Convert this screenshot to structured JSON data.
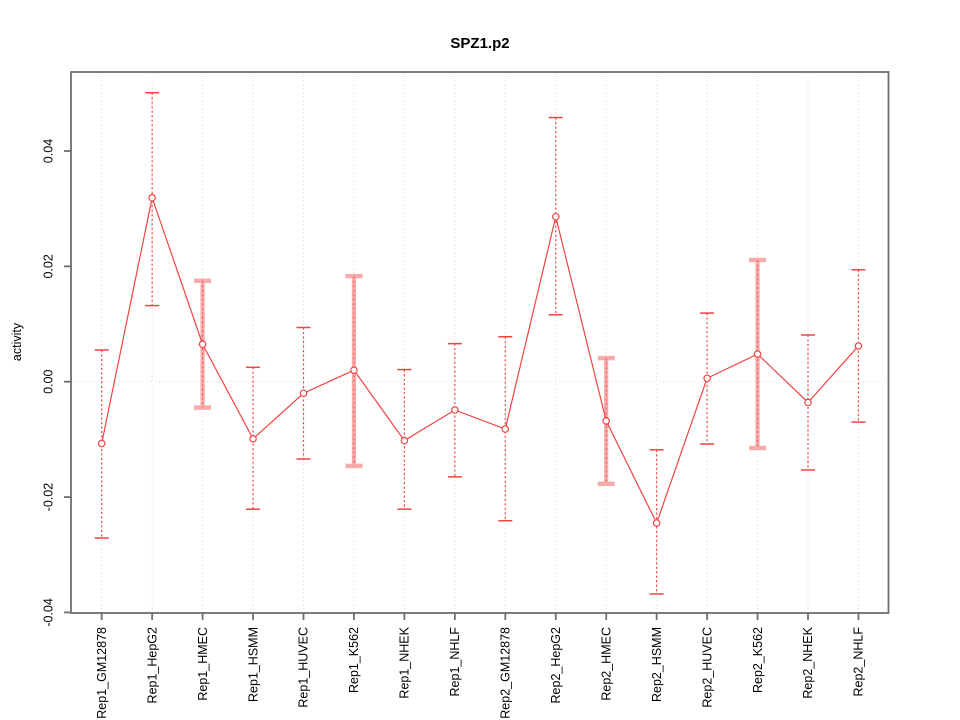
{
  "window": {
    "description": "R statistical plot of regulatory activity per cell line with error bars"
  },
  "chart_data": {
    "type": "line",
    "title": "SPZ1.p2",
    "xlabel": "",
    "ylabel": "activity",
    "categories": [
      "Rep1_GM12878",
      "Rep1_HepG2",
      "Rep1_HMEC",
      "Rep1_HSMM",
      "Rep1_HUVEC",
      "Rep1_K562",
      "Rep1_NHEK",
      "Rep1_NHLF",
      "Rep2_GM12878",
      "Rep2_HepG2",
      "Rep2_HMEC",
      "Rep2_HSMM",
      "Rep2_HUVEC",
      "Rep2_K562",
      "Rep2_NHEK",
      "Rep2_NHLF"
    ],
    "series": [
      {
        "name": "activity",
        "values": [
          -0.0107,
          0.0319,
          0.0065,
          -0.0099,
          -0.002,
          0.002,
          -0.0102,
          -0.0049,
          -0.0082,
          0.0286,
          -0.0068,
          -0.0245,
          0.0006,
          0.0048,
          -0.0036,
          0.0062
        ],
        "err_lower": [
          -0.0271,
          0.0132,
          -0.0045,
          -0.0221,
          -0.0134,
          -0.0146,
          -0.0221,
          -0.0165,
          -0.0241,
          0.0116,
          -0.0177,
          -0.0368,
          -0.0108,
          -0.0115,
          -0.0153,
          -0.007
        ],
        "err_upper": [
          0.0055,
          0.0501,
          0.0175,
          0.0025,
          0.0094,
          0.0183,
          0.0021,
          0.0066,
          0.0078,
          0.0458,
          0.0041,
          -0.0118,
          0.0119,
          0.0211,
          0.0081,
          0.0194
        ]
      }
    ],
    "thick_bar_categories": [
      "Rep1_HMEC",
      "Rep1_K562",
      "Rep2_HMEC",
      "Rep2_K562"
    ],
    "ylim": [
      -0.0401,
      0.0537
    ],
    "y_ticks": [
      -0.04,
      -0.02,
      0.0,
      0.02,
      0.04
    ],
    "y_tick_labels": [
      "-0.04",
      "-0.02",
      "0.00",
      "0.02",
      "0.04"
    ],
    "grid": {
      "vertical_dotted_per_category": true,
      "horizontal_dotted_at_zero": true
    },
    "legend": "none",
    "marker": "open-circle",
    "colors": {
      "series_red": "#f14343",
      "pale_bar_pink": "#f7abab",
      "grid_gray": "#dadada",
      "axis_gray": "#6e6e6e",
      "text_black": "#000000",
      "background": "#ffffff"
    }
  }
}
